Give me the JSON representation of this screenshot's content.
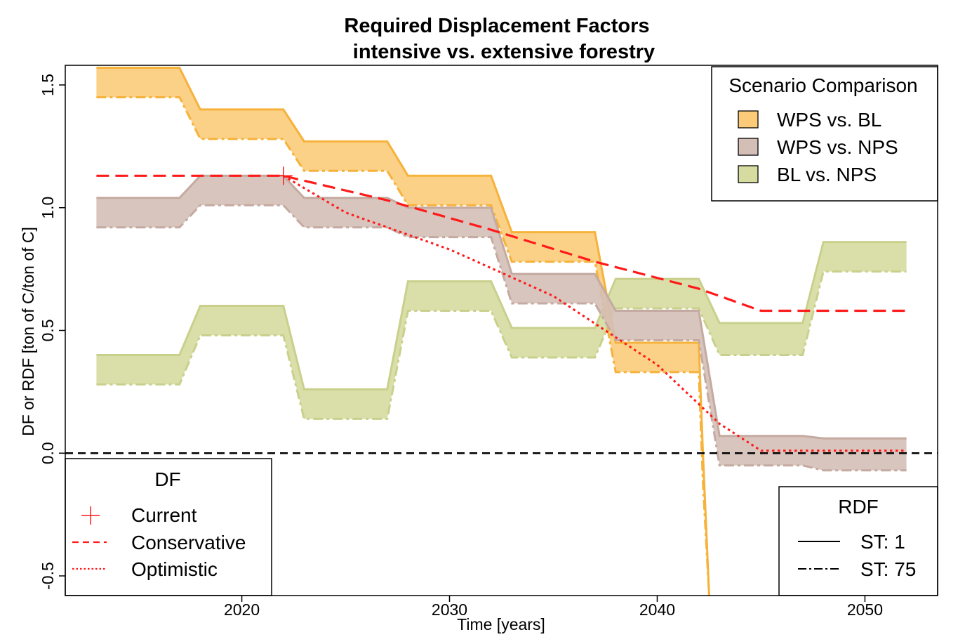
{
  "chart_data": {
    "type": "area",
    "title_line1": "Required Displacement Factors",
    "title_line2": "intensive vs. extensive forestry",
    "xlabel": "Time [years]",
    "ylabel": "DF or RDF [ton of C/ton of C]",
    "xlim": [
      2011.5,
      2053.5
    ],
    "ylim": [
      -0.58,
      1.58
    ],
    "x_ticks": [
      2020,
      2030,
      2040,
      2050
    ],
    "x_tick_labels": [
      "2020",
      "2030",
      "2040",
      "2050"
    ],
    "y_ticks": [
      -0.5,
      0.0,
      0.5,
      1.0,
      1.5
    ],
    "y_tick_labels": [
      "-0.5",
      "0.0",
      "0.5",
      "1.0",
      "1.5"
    ],
    "zero_line": 0,
    "series": [
      {
        "name": "BL vs. NPS",
        "fill": "#d6dca0",
        "stroke": "#c9d08c",
        "x": [
          2013,
          2017,
          2018,
          2022,
          2023,
          2027,
          2028,
          2032,
          2033,
          2037,
          2038,
          2042,
          2043,
          2047,
          2048,
          2052
        ],
        "st1": [
          0.4,
          0.4,
          0.6,
          0.6,
          0.26,
          0.26,
          0.7,
          0.7,
          0.51,
          0.51,
          0.71,
          0.71,
          0.53,
          0.53,
          0.86,
          0.86
        ],
        "st75": [
          0.28,
          0.28,
          0.48,
          0.48,
          0.14,
          0.14,
          0.58,
          0.58,
          0.39,
          0.39,
          0.59,
          0.59,
          0.4,
          0.4,
          0.74,
          0.74
        ]
      },
      {
        "name": "WPS vs. BL",
        "fill": "#fbcb7a",
        "stroke": "#f6b23a",
        "x": [
          2013,
          2017,
          2018,
          2022,
          2023,
          2027,
          2028,
          2032,
          2033,
          2037,
          2038,
          2042,
          2042.2,
          2042.5
        ],
        "st1": [
          1.57,
          1.57,
          1.4,
          1.4,
          1.27,
          1.27,
          1.13,
          1.13,
          0.9,
          0.9,
          0.45,
          0.45,
          0.0,
          -0.58
        ],
        "st75": [
          1.45,
          1.45,
          1.28,
          1.28,
          1.15,
          1.15,
          1.01,
          1.01,
          0.78,
          0.78,
          0.33,
          0.33,
          -0.12,
          -0.58
        ]
      },
      {
        "name": "WPS vs. NPS",
        "fill": "#d4bfb7",
        "stroke": "#c4aaa0",
        "x": [
          2013,
          2017,
          2018,
          2022,
          2023,
          2027,
          2028,
          2032,
          2033,
          2037,
          2038,
          2042,
          2043,
          2047,
          2048,
          2052
        ],
        "st1": [
          1.04,
          1.04,
          1.13,
          1.13,
          1.04,
          1.04,
          1.0,
          1.0,
          0.73,
          0.73,
          0.58,
          0.58,
          0.07,
          0.07,
          0.06,
          0.06
        ],
        "st75": [
          0.92,
          0.92,
          1.01,
          1.01,
          0.92,
          0.92,
          0.88,
          0.88,
          0.61,
          0.61,
          0.46,
          0.46,
          -0.05,
          -0.05,
          -0.07,
          -0.07
        ]
      }
    ],
    "df_current": {
      "x": 2022,
      "y": 1.13
    },
    "df_conservative": {
      "x": [
        2013,
        2022,
        2027,
        2032,
        2037,
        2042,
        2045,
        2052
      ],
      "y": [
        1.13,
        1.13,
        1.03,
        0.91,
        0.78,
        0.67,
        0.58,
        0.58
      ]
    },
    "df_optimistic": {
      "x": [
        2022,
        2025,
        2030,
        2035,
        2040,
        2043,
        2045,
        2052
      ],
      "y": [
        1.13,
        0.98,
        0.83,
        0.64,
        0.36,
        0.12,
        0.01,
        0.01
      ]
    },
    "colors": {
      "df_red": "#ff1a1a",
      "zero_line": "#000000"
    }
  },
  "legends": {
    "scenario": {
      "title": "Scenario Comparison",
      "items": [
        {
          "label": "WPS vs. BL",
          "color": "#fbcb7a"
        },
        {
          "label": "WPS vs. NPS",
          "color": "#d4bfb7"
        },
        {
          "label": "BL vs. NPS",
          "color": "#d6dca0"
        }
      ]
    },
    "df": {
      "title": "DF",
      "items": [
        {
          "label": "Current"
        },
        {
          "label": "Conservative"
        },
        {
          "label": "Optimistic"
        }
      ]
    },
    "rdf": {
      "title": "RDF",
      "items": [
        {
          "label": "ST: 1"
        },
        {
          "label": "ST: 75"
        }
      ]
    }
  }
}
